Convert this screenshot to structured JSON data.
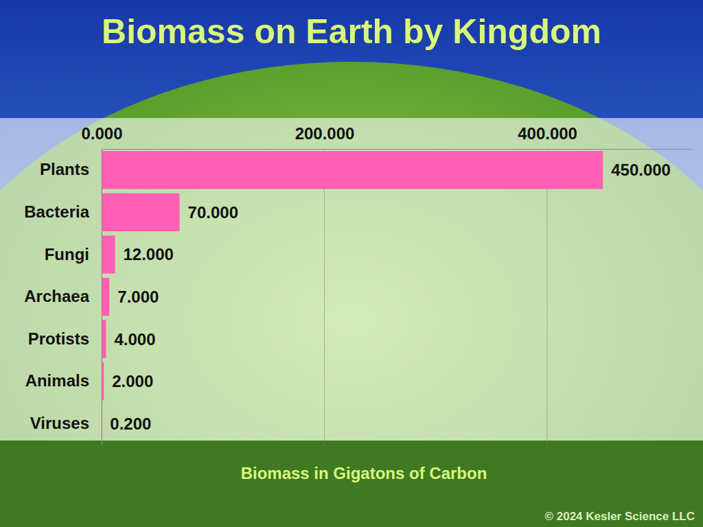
{
  "chart_data": {
    "type": "bar",
    "title": "Biomass on Earth by Kingdom",
    "x_label": "Biomass in Gigatons of Carbon",
    "annotations": [
      "© 2024 Kesler Science LLC"
    ],
    "orientation": "horizontal",
    "categories": [
      "Plants",
      "Bacteria",
      "Fungi",
      "Archaea",
      "Protists",
      "Animals",
      "Viruses"
    ],
    "values": [
      450,
      70,
      12,
      7,
      4,
      2,
      0.2
    ],
    "value_labels": [
      "450.000",
      "70.000",
      "12.000",
      "7.000",
      "4.000",
      "2.000",
      "0.200"
    ],
    "data_labels": true,
    "color": "#ff5fb4",
    "xlim": [
      0,
      530
    ],
    "xticks": [
      {
        "value": 0,
        "label": "0.000"
      },
      {
        "value": 200,
        "label": "200.000"
      },
      {
        "value": 400,
        "label": "400.000"
      }
    ],
    "grid": true
  }
}
